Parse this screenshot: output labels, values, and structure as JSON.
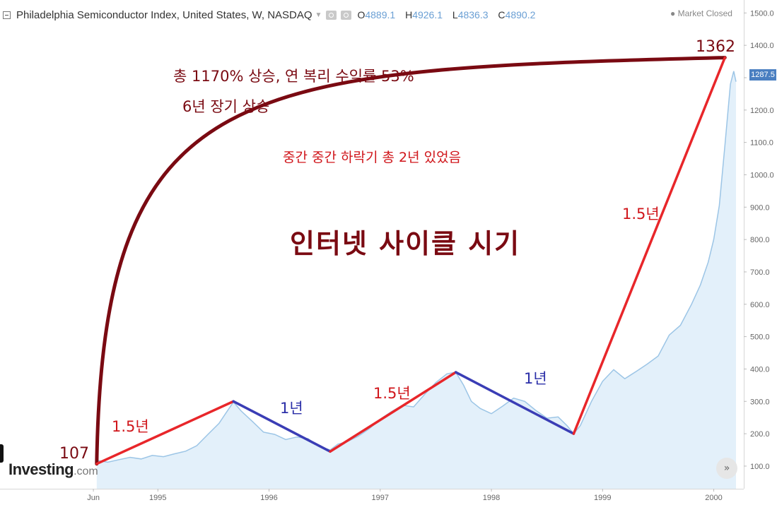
{
  "header": {
    "title": "Philadelphia Semiconductor Index, United States, W, NASDAQ",
    "dropdown_icon": "caret-down",
    "open_label": "O",
    "open_value": "4889.1",
    "high_label": "H",
    "high_value": "4926.1",
    "low_label": "L",
    "low_value": "4836.3",
    "close_label": "C",
    "close_value": "4890.2",
    "market_status": "● Market Closed"
  },
  "branding": {
    "logo_main": "Investing",
    "logo_suffix": ".com"
  },
  "controls": {
    "scroll_label": "»"
  },
  "colors": {
    "area_fill": "#e3f0fa",
    "price_line": "#9cc5e6",
    "up_segment": "#e8262a",
    "down_segment": "#3a3db5",
    "long_term_curve": "#7a0a12",
    "annotation_dark_red": "#7a0a12",
    "annotation_red": "#d0161b",
    "annotation_blue": "#2b2fa8",
    "last_price_tag": "#4a7fc1"
  },
  "chart_data": {
    "type": "area",
    "series": [
      {
        "values": [
          {
            "x": 1994.45,
            "y": 118
          },
          {
            "x": 1994.55,
            "y": 112
          },
          {
            "x": 1994.65,
            "y": 120
          },
          {
            "x": 1994.75,
            "y": 127
          },
          {
            "x": 1994.85,
            "y": 122
          },
          {
            "x": 1994.95,
            "y": 133
          },
          {
            "x": 1995.05,
            "y": 129
          },
          {
            "x": 1995.15,
            "y": 138
          },
          {
            "x": 1995.25,
            "y": 146
          },
          {
            "x": 1995.35,
            "y": 163
          },
          {
            "x": 1995.45,
            "y": 198
          },
          {
            "x": 1995.55,
            "y": 232
          },
          {
            "x": 1995.62,
            "y": 268
          },
          {
            "x": 1995.68,
            "y": 298
          },
          {
            "x": 1995.75,
            "y": 270
          },
          {
            "x": 1995.85,
            "y": 238
          },
          {
            "x": 1995.95,
            "y": 205
          },
          {
            "x": 1996.05,
            "y": 198
          },
          {
            "x": 1996.15,
            "y": 182
          },
          {
            "x": 1996.25,
            "y": 190
          },
          {
            "x": 1996.35,
            "y": 185
          },
          {
            "x": 1996.45,
            "y": 160
          },
          {
            "x": 1996.55,
            "y": 150
          },
          {
            "x": 1996.62,
            "y": 168
          },
          {
            "x": 1996.7,
            "y": 175
          },
          {
            "x": 1996.8,
            "y": 192
          },
          {
            "x": 1996.9,
            "y": 215
          },
          {
            "x": 1997.0,
            "y": 245
          },
          {
            "x": 1997.1,
            "y": 268
          },
          {
            "x": 1997.2,
            "y": 288
          },
          {
            "x": 1997.3,
            "y": 283
          },
          {
            "x": 1997.4,
            "y": 322
          },
          {
            "x": 1997.5,
            "y": 358
          },
          {
            "x": 1997.6,
            "y": 385
          },
          {
            "x": 1997.68,
            "y": 390
          },
          {
            "x": 1997.75,
            "y": 350
          },
          {
            "x": 1997.82,
            "y": 300
          },
          {
            "x": 1997.9,
            "y": 278
          },
          {
            "x": 1998.0,
            "y": 262
          },
          {
            "x": 1998.1,
            "y": 285
          },
          {
            "x": 1998.2,
            "y": 310
          },
          {
            "x": 1998.3,
            "y": 300
          },
          {
            "x": 1998.4,
            "y": 272
          },
          {
            "x": 1998.5,
            "y": 248
          },
          {
            "x": 1998.6,
            "y": 252
          },
          {
            "x": 1998.68,
            "y": 225
          },
          {
            "x": 1998.74,
            "y": 200
          },
          {
            "x": 1998.8,
            "y": 225
          },
          {
            "x": 1998.9,
            "y": 300
          },
          {
            "x": 1999.0,
            "y": 362
          },
          {
            "x": 1999.1,
            "y": 398
          },
          {
            "x": 1999.2,
            "y": 370
          },
          {
            "x": 1999.3,
            "y": 392
          },
          {
            "x": 1999.4,
            "y": 415
          },
          {
            "x": 1999.5,
            "y": 440
          },
          {
            "x": 1999.6,
            "y": 505
          },
          {
            "x": 1999.7,
            "y": 535
          },
          {
            "x": 1999.8,
            "y": 600
          },
          {
            "x": 1999.88,
            "y": 660
          },
          {
            "x": 1999.95,
            "y": 730
          },
          {
            "x": 2000.0,
            "y": 800
          },
          {
            "x": 2000.05,
            "y": 905
          },
          {
            "x": 2000.1,
            "y": 1090
          },
          {
            "x": 2000.15,
            "y": 1280
          },
          {
            "x": 2000.18,
            "y": 1320
          },
          {
            "x": 2000.2,
            "y": 1287.5
          }
        ]
      }
    ],
    "overlays": {
      "waypoints": [
        {
          "x": 1994.45,
          "y": 107
        },
        {
          "x": 1995.68,
          "y": 300
        },
        {
          "x": 1996.55,
          "y": 145
        },
        {
          "x": 1997.68,
          "y": 390
        },
        {
          "x": 1998.74,
          "y": 200
        },
        {
          "x": 2000.1,
          "y": 1362
        }
      ],
      "segment_types": [
        "up",
        "down",
        "up",
        "down",
        "up"
      ]
    },
    "x_axis": {
      "range": [
        1993.58,
        2000.27
      ],
      "ticks": [
        {
          "value": 1994.42,
          "label": "Jun"
        },
        {
          "value": 1995.0,
          "label": "1995"
        },
        {
          "value": 1996.0,
          "label": "1996"
        },
        {
          "value": 1997.0,
          "label": "1997"
        },
        {
          "value": 1998.0,
          "label": "1998"
        },
        {
          "value": 1999.0,
          "label": "1999"
        },
        {
          "value": 2000.0,
          "label": "2000"
        }
      ]
    },
    "y_axis": {
      "range": [
        30,
        1540
      ],
      "ticks": [
        {
          "value": 100,
          "label": "100.0"
        },
        {
          "value": 200,
          "label": "200.0"
        },
        {
          "value": 300,
          "label": "300.0"
        },
        {
          "value": 400,
          "label": "400.0"
        },
        {
          "value": 500,
          "label": "500.0"
        },
        {
          "value": 600,
          "label": "600.0"
        },
        {
          "value": 700,
          "label": "700.0"
        },
        {
          "value": 800,
          "label": "800.0"
        },
        {
          "value": 900,
          "label": "900.0"
        },
        {
          "value": 1000,
          "label": "1000.0"
        },
        {
          "value": 1100,
          "label": "1100.0"
        },
        {
          "value": 1200,
          "label": "1200.0"
        },
        {
          "value": 1300,
          "label": "1300.0"
        },
        {
          "value": 1400,
          "label": "1400.0"
        },
        {
          "value": 1500,
          "label": "1500.0"
        }
      ]
    },
    "last_price": "1287.5",
    "grid": false,
    "annotations": {
      "start_value": "107",
      "peak_value": "1362",
      "summary_line1": "총 1170% 상승, 연 복리 수익률 53%",
      "summary_line2": "6년 장기 상승",
      "corrections_note": "중간 중간 하락기 총 2년 있었음",
      "main_title": "인터넷 사이클 시기",
      "segment_labels": [
        "1.5년",
        "1년",
        "1.5년",
        "1년",
        "1.5년"
      ]
    }
  }
}
